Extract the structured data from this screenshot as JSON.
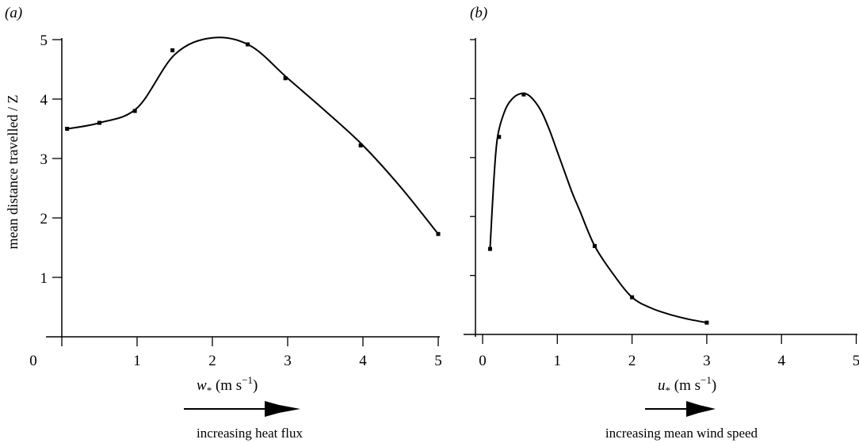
{
  "charts": [
    {
      "id": "a",
      "panel_label": "(a)",
      "ylabel": "mean distance travelled / Z",
      "xlabel_var": "w",
      "xlabel_sub": "*",
      "xlabel_unit_open": " (m s",
      "xlabel_unit_exp": "−1",
      "xlabel_unit_close": ")",
      "annotation": "increasing heat flux",
      "x_ticks": [
        "0",
        "1",
        "2",
        "3",
        "4",
        "5"
      ],
      "y_ticks": [
        "1",
        "2",
        "3",
        "4",
        "5"
      ]
    },
    {
      "id": "b",
      "panel_label": "(b)",
      "ylabel": "",
      "xlabel_var": "u",
      "xlabel_sub": "*",
      "xlabel_unit_open": " (m s",
      "xlabel_unit_exp": "−1",
      "xlabel_unit_close": ")",
      "annotation": "increasing mean wind speed",
      "x_ticks": [
        "0",
        "1",
        "2",
        "3",
        "4",
        "5"
      ],
      "y_ticks": []
    }
  ],
  "chart_data": [
    {
      "type": "line",
      "title": "",
      "xlabel": "w* (m s−1)",
      "ylabel": "mean distance travelled / Z",
      "xlim": [
        0,
        5
      ],
      "ylim": [
        0,
        5
      ],
      "grid": false,
      "series": [
        {
          "x": [
            0.07,
            0.5,
            1.0,
            1.5,
            2.0,
            2.5,
            3.0,
            3.5,
            4.0,
            4.5,
            5.0
          ],
          "y": [
            3.5,
            3.6,
            3.85,
            4.75,
            5.03,
            4.9,
            4.35,
            3.8,
            3.22,
            2.52,
            1.73
          ]
        }
      ],
      "markers": {
        "x": [
          0.07,
          0.5,
          0.97,
          1.47,
          2.47,
          2.97,
          3.97,
          5.0
        ],
        "y": [
          3.5,
          3.6,
          3.8,
          4.82,
          4.92,
          4.35,
          3.22,
          1.73
        ]
      }
    },
    {
      "type": "line",
      "title": "",
      "xlabel": "u* (m s−1)",
      "ylabel": "mean distance travelled / Z",
      "xlim": [
        0,
        5
      ],
      "ylim": [
        0,
        5
      ],
      "grid": false,
      "series": [
        {
          "x": [
            0.1,
            0.15,
            0.2,
            0.3,
            0.4,
            0.5,
            0.6,
            0.7,
            0.8,
            0.9,
            1.0,
            1.1,
            1.2,
            1.3,
            1.5,
            1.75,
            2.0,
            2.25,
            2.5,
            2.75,
            3.0
          ],
          "y": [
            1.45,
            2.6,
            3.35,
            3.8,
            4.0,
            4.08,
            4.07,
            3.95,
            3.75,
            3.45,
            3.1,
            2.75,
            2.4,
            2.1,
            1.5,
            1.02,
            0.63,
            0.45,
            0.34,
            0.26,
            0.2
          ]
        }
      ],
      "markers": {
        "x": [
          0.1,
          0.22,
          0.55,
          1.5,
          2.0,
          3.0
        ],
        "y": [
          1.45,
          3.35,
          4.07,
          1.5,
          0.63,
          0.2
        ]
      }
    }
  ]
}
